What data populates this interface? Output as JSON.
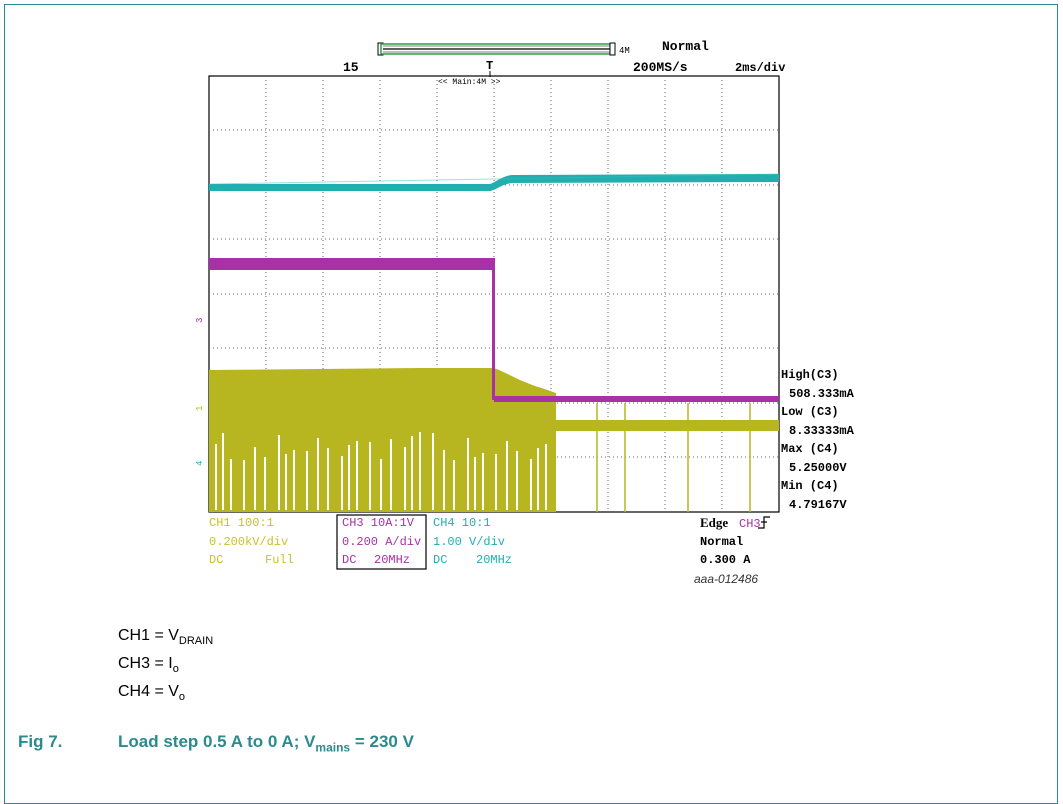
{
  "scope": {
    "top": {
      "record_length": "4M",
      "trigger_mode": "Normal",
      "record_number": "15",
      "sample_rate": "200MS/s",
      "time_div": "2ms/div",
      "main_label": "<< Main:4M >>",
      "trigger_marker": "T"
    },
    "side_markers": {
      "ch3": "3",
      "ch1": "1",
      "ch4": "4"
    },
    "measurements": [
      {
        "label": "High(C3)",
        "value": "508.333mA"
      },
      {
        "label": "Low (C3)",
        "value": "8.33333mA"
      },
      {
        "label": "Max (C4)",
        "value": "5.25000V"
      },
      {
        "label": "Min (C4)",
        "value": "4.79167V"
      }
    ],
    "ch1": {
      "line1": "CH1 100:1",
      "line2": "0.200kV/div",
      "line3a": "DC",
      "line3b": "Full"
    },
    "ch3": {
      "line1": "CH3 10A:1V",
      "line2": "0.200 A/div",
      "line3a": "DC",
      "line3b": "20MHz"
    },
    "ch4": {
      "line1": "CH4 10:1",
      "line2": "1.00 V/div",
      "line3a": "DC",
      "line3b": "20MHz"
    },
    "trigger": {
      "line1a": "Edge",
      "line1b": "CH3",
      "line2": "Normal",
      "line3": "0.300 A"
    },
    "image_id": "aaa-012486",
    "colors": {
      "ch1": "#b7b620",
      "ch3": "#a931a6",
      "ch4": "#22aeae",
      "ch4_bright": "#2fc4c0"
    }
  },
  "legend": [
    {
      "base": "CH1 = V",
      "sub": "DRAIN"
    },
    {
      "base": "CH3 = I",
      "sub": "o"
    },
    {
      "base": "CH4 = V",
      "sub": "o"
    }
  ],
  "caption": {
    "figno": "Fig 7.",
    "text1": "Load step 0.5 A to 0 A; V",
    "sub": "mains",
    "text2": " = 230 V"
  }
}
